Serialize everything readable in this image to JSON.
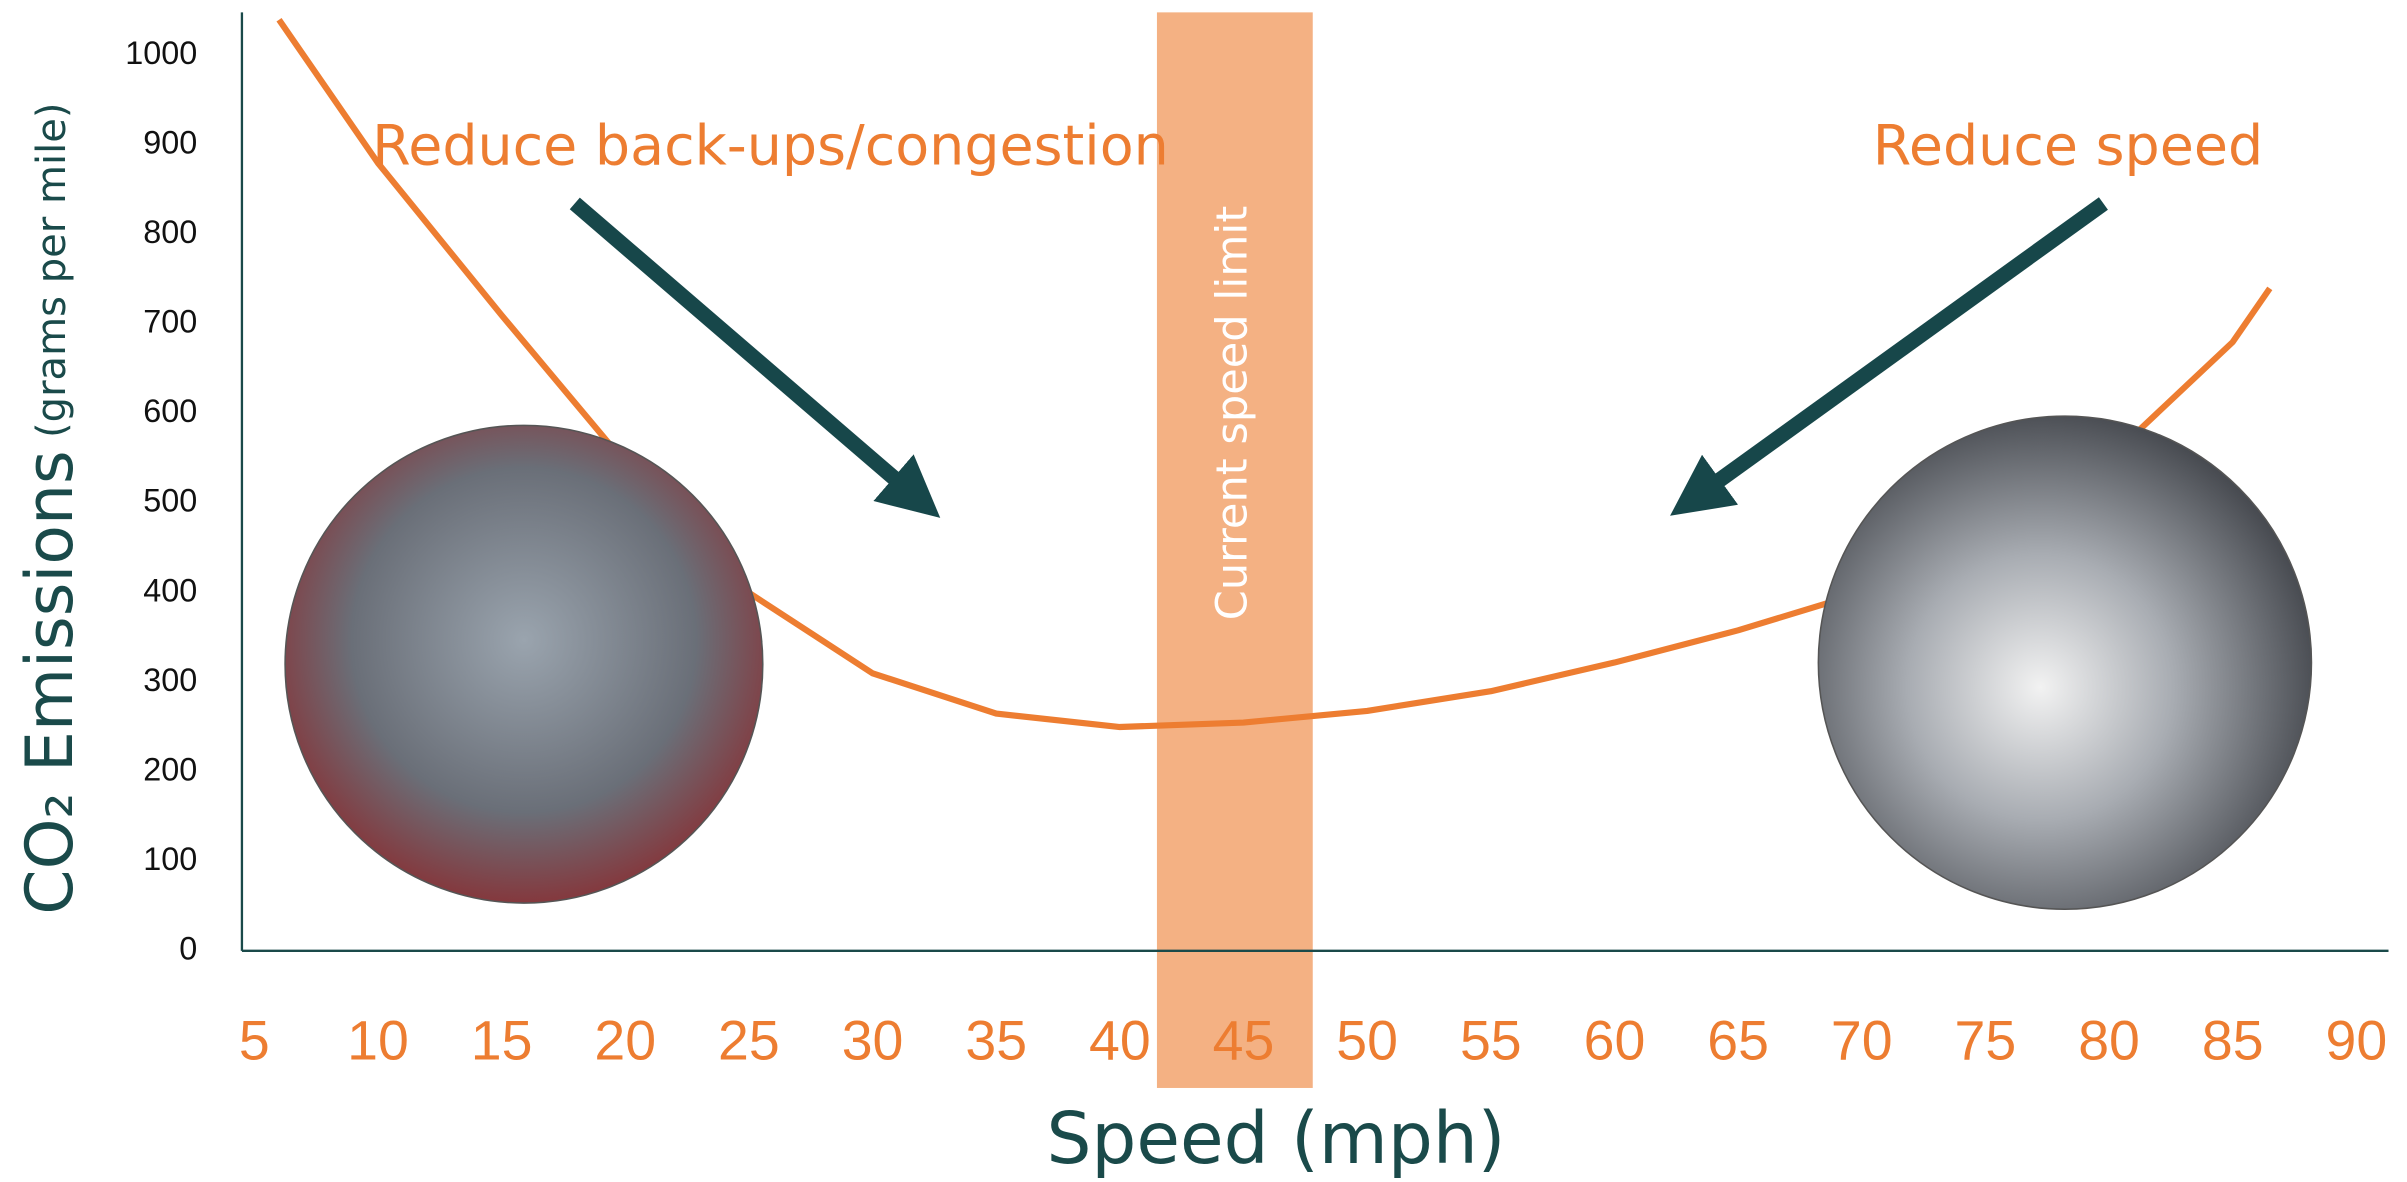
{
  "chart_data": {
    "type": "line",
    "x_label": "Speed (mph)",
    "y_label": "CO₂ Emissions",
    "y_label_unit": "(grams per mile)",
    "x": [
      6,
      10,
      15,
      20,
      25,
      30,
      35,
      40,
      45,
      50,
      55,
      60,
      65,
      70,
      75,
      80,
      85,
      86.5
    ],
    "series": [
      {
        "color": "#ed7d31",
        "values": [
          1040,
          880,
          710,
          545,
          400,
          310,
          265,
          250,
          255,
          268,
          290,
          322,
          358,
          400,
          460,
          550,
          680,
          740
        ]
      }
    ],
    "xlim": [
      4.5,
      91.3
    ],
    "xticks": [
      5,
      10,
      15,
      20,
      25,
      30,
      35,
      40,
      45,
      50,
      55,
      60,
      65,
      70,
      75,
      80,
      85,
      90
    ],
    "ylim": [
      0,
      1050
    ],
    "yticks": [
      0,
      100,
      200,
      300,
      400,
      500,
      600,
      700,
      800,
      900,
      1000
    ],
    "highlight_band": {
      "range": [
        41.5,
        47.8
      ],
      "label": "Current speed limit",
      "color": "#f4b183"
    },
    "annotations": [
      "Reduce back-ups/congestion",
      "Reduce speed"
    ]
  }
}
